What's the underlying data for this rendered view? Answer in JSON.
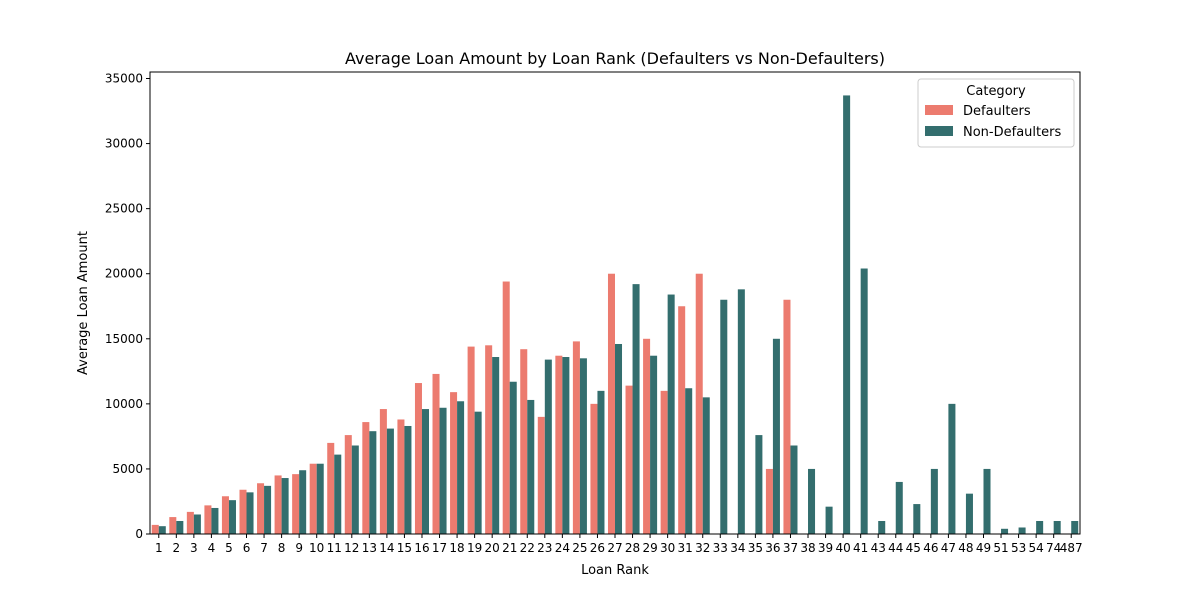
{
  "chart_data": {
    "type": "bar",
    "title": "Average Loan Amount by Loan Rank (Defaulters vs Non-Defaulters)",
    "xlabel": "Loan Rank",
    "ylabel": "Average Loan Amount",
    "ylim": [
      0,
      35500
    ],
    "yticks": [
      0,
      5000,
      10000,
      15000,
      20000,
      25000,
      30000,
      35000
    ],
    "grid": false,
    "legend": {
      "title": "Category",
      "placement": "top-right"
    },
    "categories": [
      "1",
      "2",
      "3",
      "4",
      "5",
      "6",
      "7",
      "8",
      "9",
      "10",
      "11",
      "12",
      "13",
      "14",
      "15",
      "16",
      "17",
      "18",
      "19",
      "20",
      "21",
      "22",
      "23",
      "24",
      "25",
      "26",
      "27",
      "28",
      "29",
      "30",
      "31",
      "32",
      "33",
      "34",
      "35",
      "36",
      "37",
      "38",
      "39",
      "40",
      "41",
      "43",
      "44",
      "45",
      "46",
      "47",
      "48",
      "49",
      "51",
      "53",
      "54",
      "74",
      "487"
    ],
    "series": [
      {
        "name": "Defaulters",
        "color": "#ec7b6f",
        "values": [
          700,
          1300,
          1700,
          2200,
          2900,
          3400,
          3900,
          4500,
          4600,
          5400,
          7000,
          7600,
          8600,
          9600,
          8800,
          11600,
          12300,
          10900,
          14400,
          14500,
          19400,
          14200,
          9000,
          13700,
          14800,
          10000,
          20000,
          11400,
          15000,
          11000,
          17500,
          20000,
          null,
          null,
          null,
          5000,
          18000,
          null,
          null,
          null,
          null,
          null,
          null,
          null,
          null,
          null,
          null,
          null,
          null,
          null,
          null,
          null,
          null
        ]
      },
      {
        "name": "Non-Defaulters",
        "color": "#336e6e",
        "values": [
          600,
          1000,
          1500,
          2000,
          2600,
          3200,
          3700,
          4300,
          4900,
          5400,
          6100,
          6800,
          7900,
          8100,
          8300,
          9600,
          9700,
          10200,
          9400,
          13600,
          11700,
          10300,
          13400,
          13600,
          13500,
          11000,
          14600,
          19200,
          13700,
          18400,
          11200,
          10500,
          18000,
          18800,
          7600,
          15000,
          6800,
          5000,
          2100,
          33700,
          20400,
          1000,
          4000,
          2300,
          5000,
          10000,
          3100,
          5000,
          400,
          500,
          1000,
          1000,
          1000
        ]
      }
    ]
  }
}
